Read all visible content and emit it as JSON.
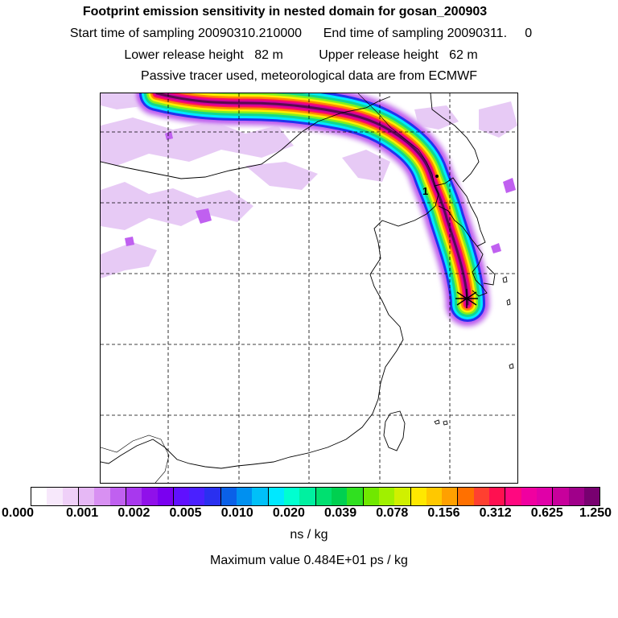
{
  "header": {
    "title": "Footprint emission sensitivity in nested domain for gosan_200903",
    "line_sampling": "Start time of sampling 20090310.210000      End time of sampling 20090311.     0",
    "line_release": "Lower release height   82 m          Upper release height   62 m",
    "line_tracer": "Passive tracer used, meteorological data are from ECMWF"
  },
  "map": {
    "marker_label": "1",
    "plume_colors": [
      "#e6c8f5",
      "#c060f0",
      "#2233ee",
      "#00e8ff",
      "#10d890",
      "#80f020",
      "#ffee00",
      "#ff8800",
      "#ff1060",
      "#d000a0",
      "#5a0a50"
    ]
  },
  "colorbar": {
    "colors": [
      "#ffffff",
      "#f7e8fb",
      "#efd0f8",
      "#e6b8f5",
      "#d890f2",
      "#c060f0",
      "#a838ee",
      "#9010ea",
      "#7a00f0",
      "#6010ff",
      "#4a20ff",
      "#2a30f0",
      "#0a60e8",
      "#0090f0",
      "#00c0f8",
      "#00e8ff",
      "#00ffd0",
      "#00f0a0",
      "#00e070",
      "#00d050",
      "#30e020",
      "#70e800",
      "#a0f000",
      "#d0f000",
      "#ffe800",
      "#ffc800",
      "#ffa000",
      "#ff7000",
      "#ff4030",
      "#ff1050",
      "#ff0880",
      "#f000a0",
      "#e000a8",
      "#c8009c",
      "#a0008a",
      "#780070"
    ],
    "tick_labels": [
      "0.000",
      "0.001",
      "0.002",
      "0.005",
      "0.010",
      "0.020",
      "0.039",
      "0.078",
      "0.156",
      "0.312",
      "0.625",
      "1.250"
    ],
    "unit": "ns / kg",
    "max_label": "Maximum value  0.484E+01 ps / kg"
  }
}
